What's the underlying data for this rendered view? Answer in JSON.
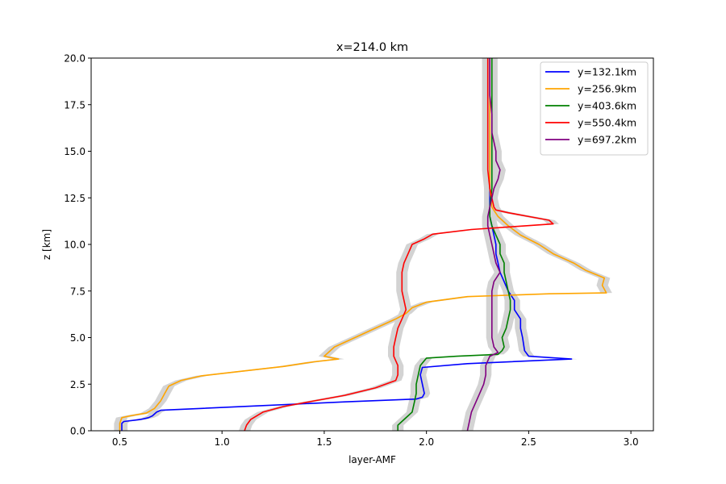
{
  "chart_data": {
    "type": "line",
    "title": "x=214.0 km",
    "xlabel": "layer-AMF",
    "ylabel": "z [km]",
    "xlim": [
      0.36,
      3.11
    ],
    "ylim": [
      0,
      20
    ],
    "xticks": [
      "0.5",
      "1.0",
      "1.5",
      "2.0",
      "2.5",
      "3.0"
    ],
    "yticks": [
      "0.0",
      "2.5",
      "5.0",
      "7.5",
      "10.0",
      "12.5",
      "15.0",
      "17.5",
      "20.0"
    ],
    "grid": false,
    "legend_position": "top-right",
    "uncertainty_band_color": "#d3d3d3",
    "series": [
      {
        "name": "y=132.1km",
        "color": "#0000ff",
        "points": [
          [
            0.51,
            0
          ],
          [
            0.51,
            0.4
          ],
          [
            0.52,
            0.5
          ],
          [
            0.6,
            0.6
          ],
          [
            0.64,
            0.7
          ],
          [
            0.66,
            0.8
          ],
          [
            0.68,
            1.0
          ],
          [
            0.7,
            1.1
          ],
          [
            0.9,
            1.2
          ],
          [
            1.2,
            1.35
          ],
          [
            1.6,
            1.55
          ],
          [
            1.95,
            1.7
          ],
          [
            1.98,
            1.8
          ],
          [
            1.99,
            2.0
          ],
          [
            1.98,
            2.5
          ],
          [
            1.97,
            3.0
          ],
          [
            1.98,
            3.4
          ],
          [
            2.2,
            3.6
          ],
          [
            2.71,
            3.85
          ],
          [
            2.5,
            4.0
          ],
          [
            2.48,
            4.3
          ],
          [
            2.47,
            5.0
          ],
          [
            2.46,
            5.5
          ],
          [
            2.46,
            6.0
          ],
          [
            2.43,
            6.5
          ],
          [
            2.43,
            7.0
          ],
          [
            2.4,
            7.5
          ],
          [
            2.38,
            8.0
          ],
          [
            2.36,
            8.5
          ],
          [
            2.35,
            9.0
          ],
          [
            2.34,
            9.5
          ],
          [
            2.34,
            10.0
          ],
          [
            2.33,
            10.5
          ],
          [
            2.32,
            11.0
          ],
          [
            2.31,
            11.5
          ],
          [
            2.31,
            12.0
          ],
          [
            2.31,
            12.5
          ],
          [
            2.31,
            13.0
          ],
          [
            2.31,
            14.0
          ],
          [
            2.31,
            15.0
          ],
          [
            2.31,
            16.0
          ],
          [
            2.31,
            17.0
          ],
          [
            2.31,
            18.0
          ],
          [
            2.31,
            19.0
          ],
          [
            2.31,
            20.0
          ]
        ]
      },
      {
        "name": "y=256.9km",
        "color": "#ffa500",
        "points": [
          [
            0.5,
            0
          ],
          [
            0.5,
            0.4
          ],
          [
            0.51,
            0.7
          ],
          [
            0.55,
            0.8
          ],
          [
            0.63,
            0.95
          ],
          [
            0.67,
            1.2
          ],
          [
            0.7,
            1.6
          ],
          [
            0.72,
            2.0
          ],
          [
            0.74,
            2.4
          ],
          [
            0.8,
            2.7
          ],
          [
            0.9,
            2.95
          ],
          [
            1.1,
            3.2
          ],
          [
            1.3,
            3.45
          ],
          [
            1.45,
            3.7
          ],
          [
            1.57,
            3.85
          ],
          [
            1.5,
            4.0
          ],
          [
            1.55,
            4.5
          ],
          [
            1.65,
            5.0
          ],
          [
            1.75,
            5.5
          ],
          [
            1.85,
            6.0
          ],
          [
            1.9,
            6.3
          ],
          [
            1.93,
            6.6
          ],
          [
            2.0,
            6.9
          ],
          [
            2.2,
            7.2
          ],
          [
            2.6,
            7.35
          ],
          [
            2.88,
            7.4
          ],
          [
            2.86,
            7.8
          ],
          [
            2.87,
            8.2
          ],
          [
            2.78,
            8.6
          ],
          [
            2.72,
            9.0
          ],
          [
            2.62,
            9.5
          ],
          [
            2.55,
            10.0
          ],
          [
            2.46,
            10.5
          ],
          [
            2.4,
            11.0
          ],
          [
            2.35,
            11.5
          ],
          [
            2.32,
            12.0
          ],
          [
            2.31,
            13.0
          ],
          [
            2.31,
            14.0
          ],
          [
            2.31,
            15.0
          ],
          [
            2.31,
            16.0
          ],
          [
            2.31,
            17.0
          ],
          [
            2.31,
            18.0
          ],
          [
            2.31,
            19.0
          ],
          [
            2.31,
            20.0
          ]
        ]
      },
      {
        "name": "y=403.6km",
        "color": "#008000",
        "points": [
          [
            1.86,
            0
          ],
          [
            1.86,
            0.3
          ],
          [
            1.89,
            0.6
          ],
          [
            1.93,
            1.0
          ],
          [
            1.94,
            1.5
          ],
          [
            1.95,
            2.0
          ],
          [
            1.95,
            2.5
          ],
          [
            1.96,
            3.0
          ],
          [
            1.97,
            3.5
          ],
          [
            2.0,
            3.9
          ],
          [
            2.15,
            4.0
          ],
          [
            2.35,
            4.1
          ],
          [
            2.37,
            4.3
          ],
          [
            2.38,
            4.5
          ],
          [
            2.37,
            5.0
          ],
          [
            2.39,
            5.5
          ],
          [
            2.4,
            6.0
          ],
          [
            2.41,
            6.5
          ],
          [
            2.41,
            7.0
          ],
          [
            2.4,
            7.5
          ],
          [
            2.39,
            8.0
          ],
          [
            2.38,
            8.5
          ],
          [
            2.38,
            9.0
          ],
          [
            2.36,
            9.5
          ],
          [
            2.36,
            10.0
          ],
          [
            2.34,
            10.5
          ],
          [
            2.32,
            11.0
          ],
          [
            2.31,
            11.5
          ],
          [
            2.31,
            12.0
          ],
          [
            2.32,
            13.0
          ],
          [
            2.32,
            14.0
          ],
          [
            2.32,
            15.0
          ],
          [
            2.32,
            16.0
          ],
          [
            2.32,
            17.0
          ],
          [
            2.32,
            18.0
          ],
          [
            2.32,
            19.0
          ],
          [
            2.32,
            20.0
          ]
        ]
      },
      {
        "name": "y=550.4km",
        "color": "#ff0000",
        "points": [
          [
            1.11,
            0
          ],
          [
            1.12,
            0.3
          ],
          [
            1.14,
            0.6
          ],
          [
            1.2,
            1.0
          ],
          [
            1.3,
            1.3
          ],
          [
            1.45,
            1.6
          ],
          [
            1.6,
            1.9
          ],
          [
            1.75,
            2.3
          ],
          [
            1.85,
            2.7
          ],
          [
            1.86,
            3.0
          ],
          [
            1.86,
            3.5
          ],
          [
            1.84,
            4.0
          ],
          [
            1.84,
            4.5
          ],
          [
            1.85,
            5.0
          ],
          [
            1.86,
            5.5
          ],
          [
            1.88,
            6.0
          ],
          [
            1.9,
            6.5
          ],
          [
            1.89,
            7.0
          ],
          [
            1.88,
            7.5
          ],
          [
            1.88,
            8.0
          ],
          [
            1.88,
            8.5
          ],
          [
            1.89,
            9.0
          ],
          [
            1.91,
            9.5
          ],
          [
            1.93,
            10.0
          ],
          [
            1.99,
            10.3
          ],
          [
            2.03,
            10.55
          ],
          [
            2.22,
            10.8
          ],
          [
            2.42,
            10.95
          ],
          [
            2.62,
            11.1
          ],
          [
            2.6,
            11.3
          ],
          [
            2.5,
            11.5
          ],
          [
            2.4,
            11.7
          ],
          [
            2.34,
            11.85
          ],
          [
            2.33,
            12.0
          ],
          [
            2.31,
            13.0
          ],
          [
            2.3,
            14.0
          ],
          [
            2.3,
            15.0
          ],
          [
            2.3,
            16.0
          ],
          [
            2.3,
            17.0
          ],
          [
            2.3,
            18.0
          ],
          [
            2.3,
            19.0
          ],
          [
            2.3,
            20.0
          ]
        ]
      },
      {
        "name": "y=697.2km",
        "color": "#800080",
        "points": [
          [
            2.2,
            0
          ],
          [
            2.21,
            0.5
          ],
          [
            2.22,
            1.0
          ],
          [
            2.24,
            1.5
          ],
          [
            2.26,
            2.0
          ],
          [
            2.28,
            2.5
          ],
          [
            2.29,
            3.0
          ],
          [
            2.29,
            3.5
          ],
          [
            2.31,
            4.0
          ],
          [
            2.35,
            4.2
          ],
          [
            2.33,
            4.5
          ],
          [
            2.32,
            5.0
          ],
          [
            2.32,
            5.5
          ],
          [
            2.32,
            6.0
          ],
          [
            2.32,
            6.5
          ],
          [
            2.32,
            7.0
          ],
          [
            2.32,
            7.5
          ],
          [
            2.33,
            8.0
          ],
          [
            2.36,
            8.5
          ],
          [
            2.34,
            9.0
          ],
          [
            2.33,
            9.5
          ],
          [
            2.32,
            10.0
          ],
          [
            2.31,
            10.5
          ],
          [
            2.3,
            11.0
          ],
          [
            2.3,
            11.5
          ],
          [
            2.31,
            12.0
          ],
          [
            2.32,
            12.5
          ],
          [
            2.33,
            13.0
          ],
          [
            2.35,
            13.5
          ],
          [
            2.36,
            14.0
          ],
          [
            2.34,
            14.5
          ],
          [
            2.34,
            15.0
          ],
          [
            2.33,
            15.5
          ],
          [
            2.32,
            16.0
          ],
          [
            2.32,
            17.0
          ],
          [
            2.31,
            18.0
          ],
          [
            2.31,
            19.0
          ],
          [
            2.31,
            20.0
          ]
        ]
      }
    ]
  }
}
